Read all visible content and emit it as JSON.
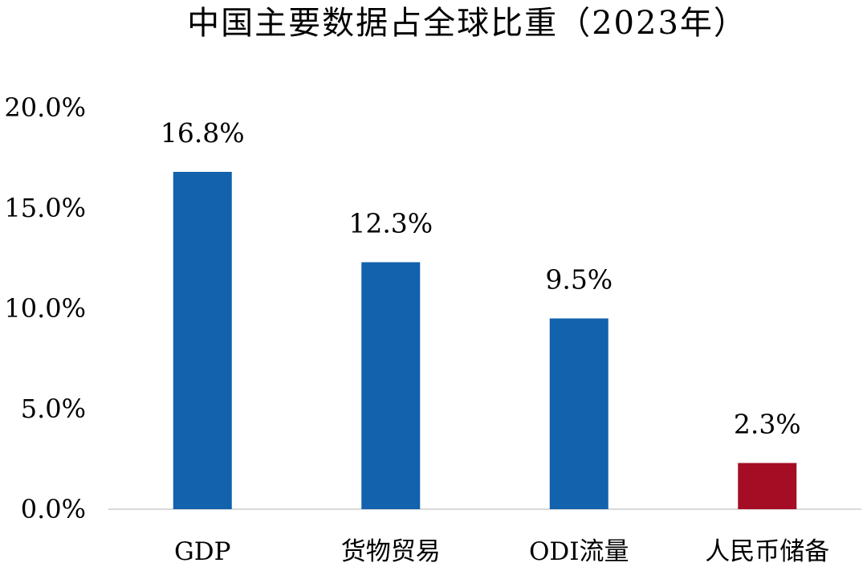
{
  "chart_data": {
    "type": "bar",
    "title": "中国主要数据占全球比重（2023年）",
    "xlabel": "",
    "ylabel": "",
    "categories": [
      "GDP",
      "货物贸易",
      "ODI流量",
      "人民币储备"
    ],
    "values": [
      16.8,
      12.3,
      9.5,
      2.3
    ],
    "data_labels": [
      "16.8%",
      "12.3%",
      "9.5%",
      "2.3%"
    ],
    "bar_colors": [
      "#1262ad",
      "#1262ad",
      "#1262ad",
      "#a50d24"
    ],
    "ylim": [
      0,
      20
    ],
    "yticks": [
      0,
      5,
      10,
      15,
      20
    ],
    "ytick_labels": [
      "0.0%",
      "5.0%",
      "10.0%",
      "15.0%",
      "20.0%"
    ],
    "grid": false,
    "legend": "none"
  },
  "colors": {
    "axis_line": "#d9d9d9",
    "text": "#000000"
  }
}
